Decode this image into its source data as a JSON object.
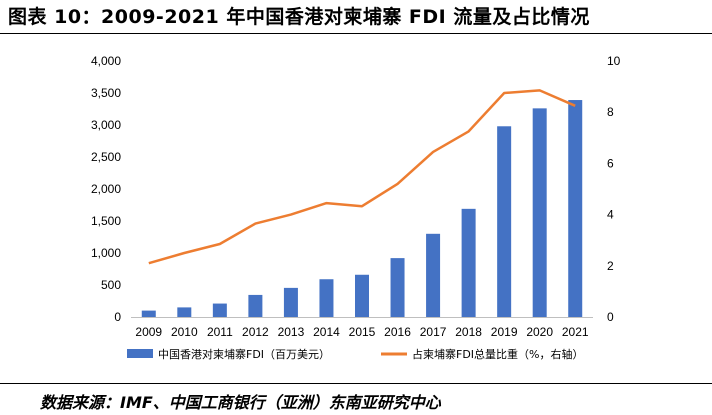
{
  "title": "图表 10：2009-2021 年中国香港对柬埔寨 FDI 流量及占比情况",
  "source": "数据来源：IMF、中国工商银行（亚洲）东南亚研究中心",
  "colors": {
    "bar": "#4472C4",
    "line": "#ED7D31"
  },
  "chart_data": {
    "type": "bar",
    "categories": [
      "2009",
      "2010",
      "2011",
      "2012",
      "2013",
      "2014",
      "2015",
      "2016",
      "2017",
      "2018",
      "2019",
      "2020",
      "2021"
    ],
    "series": [
      {
        "name": "中国香港对柬埔寨FDI（百万美元）",
        "kind": "bar",
        "axis": "left",
        "values": [
          100,
          150,
          210,
          345,
          455,
          590,
          660,
          920,
          1300,
          1690,
          2980,
          3260,
          3390
        ]
      },
      {
        "name": "占柬埔寨FDI总量比重（%，右轴）",
        "kind": "line",
        "axis": "right",
        "values": [
          2.1,
          2.5,
          2.85,
          3.65,
          4.0,
          4.45,
          4.33,
          5.2,
          6.45,
          7.25,
          8.75,
          8.85,
          8.25
        ]
      }
    ],
    "y_left": {
      "min": 0,
      "max": 4000,
      "ticks": [
        0,
        500,
        1000,
        1500,
        2000,
        2500,
        3000,
        3500,
        4000
      ],
      "tick_labels": [
        "0",
        "500",
        "1,000",
        "1,500",
        "2,000",
        "2,500",
        "3,000",
        "3,500",
        "4,000"
      ]
    },
    "y_right": {
      "min": 0,
      "max": 10,
      "ticks": [
        0,
        2,
        4,
        6,
        8,
        10
      ],
      "tick_labels": [
        "0",
        "2",
        "4",
        "6",
        "8",
        "10"
      ]
    },
    "grid": false,
    "legend": "bottom"
  }
}
